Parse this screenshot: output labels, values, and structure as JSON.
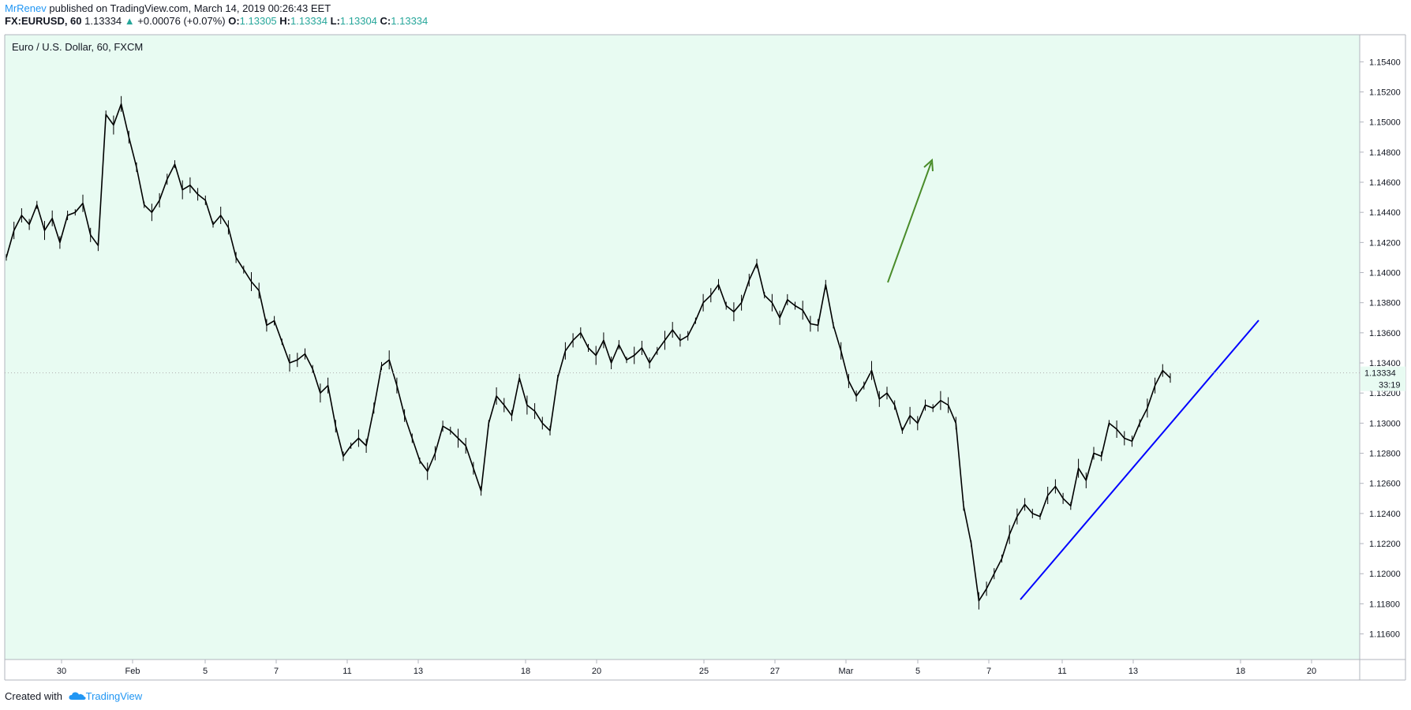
{
  "header": {
    "author": "MrRenev",
    "published_text": "published on TradingView.com, March 14, 2019 00:26:43 EET",
    "symbol": "FX:EURUSD, 60",
    "last": "1.13334",
    "change": "+0.00076 (+0.07%)",
    "o_label": "O:",
    "o": "1.13305",
    "h_label": "H:",
    "h": "1.13334",
    "l_label": "L:",
    "l": "1.13304",
    "c_label": "C:",
    "c": "1.13334"
  },
  "footer": {
    "created_with": "Created with",
    "brand": "TradingView"
  },
  "colors": {
    "chart_bg": "#e8fbf2",
    "price_line": "#000000",
    "trend_line": "#0000ff",
    "arrow": "#4a8c2a",
    "author": "#2196f3",
    "up": "#26a69a"
  },
  "chart_data": {
    "type": "line",
    "title": "Euro / U.S. Dollar, 60, FXCM",
    "y_ticks": [
      "1.15400",
      "1.15200",
      "1.15000",
      "1.14800",
      "1.14600",
      "1.14400",
      "1.14200",
      "1.14000",
      "1.13800",
      "1.13600",
      "1.13400",
      "1.13200",
      "1.13000",
      "1.12800",
      "1.12600",
      "1.12400",
      "1.12200",
      "1.12000",
      "1.11800",
      "1.11600"
    ],
    "ylim": [
      1.1143,
      1.1558
    ],
    "x_ticks": [
      "30",
      "Feb",
      "5",
      "7",
      "11",
      "13",
      "18",
      "20",
      "25",
      "27",
      "Mar",
      "5",
      "7",
      "11",
      "13",
      "18",
      "20"
    ],
    "last_price_label": "1.13334",
    "countdown_label": "33:19",
    "series": [
      {
        "values": [
          1.141,
          1.1428,
          1.1438,
          1.1432,
          1.1445,
          1.1428,
          1.1436,
          1.142,
          1.1438,
          1.144,
          1.1446,
          1.1425,
          1.1418,
          1.1505,
          1.1498,
          1.1512,
          1.149,
          1.147,
          1.1445,
          1.144,
          1.1448,
          1.1462,
          1.1472,
          1.1455,
          1.1458,
          1.1452,
          1.1448,
          1.1432,
          1.1438,
          1.143,
          1.141,
          1.1402,
          1.1394,
          1.1388,
          1.1365,
          1.1368,
          1.1354,
          1.134,
          1.1342,
          1.1346,
          1.1336,
          1.132,
          1.1325,
          1.1298,
          1.1278,
          1.1285,
          1.129,
          1.1285,
          1.131,
          1.1338,
          1.1342,
          1.1325,
          1.1305,
          1.129,
          1.1275,
          1.1268,
          1.128,
          1.1298,
          1.1295,
          1.129,
          1.1285,
          1.127,
          1.1255,
          1.13,
          1.1318,
          1.1312,
          1.1305,
          1.133,
          1.1312,
          1.1308,
          1.13,
          1.1295,
          1.133,
          1.1348,
          1.1355,
          1.136,
          1.135,
          1.1345,
          1.1355,
          1.134,
          1.1352,
          1.1342,
          1.1345,
          1.135,
          1.134,
          1.1348,
          1.1355,
          1.1362,
          1.1355,
          1.1358,
          1.1368,
          1.138,
          1.1385,
          1.1392,
          1.1378,
          1.1374,
          1.138,
          1.1395,
          1.1406,
          1.1385,
          1.138,
          1.137,
          1.1382,
          1.1378,
          1.1375,
          1.1366,
          1.1365,
          1.1392,
          1.1365,
          1.1348,
          1.1328,
          1.1318,
          1.1325,
          1.1335,
          1.1316,
          1.132,
          1.1312,
          1.1295,
          1.1305,
          1.13,
          1.1312,
          1.131,
          1.1315,
          1.1312,
          1.13,
          1.1245,
          1.122,
          1.1182,
          1.119,
          1.12,
          1.121,
          1.1226,
          1.1238,
          1.1246,
          1.124,
          1.1238,
          1.1252,
          1.1258,
          1.125,
          1.1245,
          1.127,
          1.1262,
          1.128,
          1.1278,
          1.13,
          1.1296,
          1.129,
          1.1288,
          1.13,
          1.131,
          1.1325,
          1.1335,
          1.133
        ]
      }
    ],
    "annotations": [
      "green up arrow",
      "blue rising trend line"
    ]
  }
}
